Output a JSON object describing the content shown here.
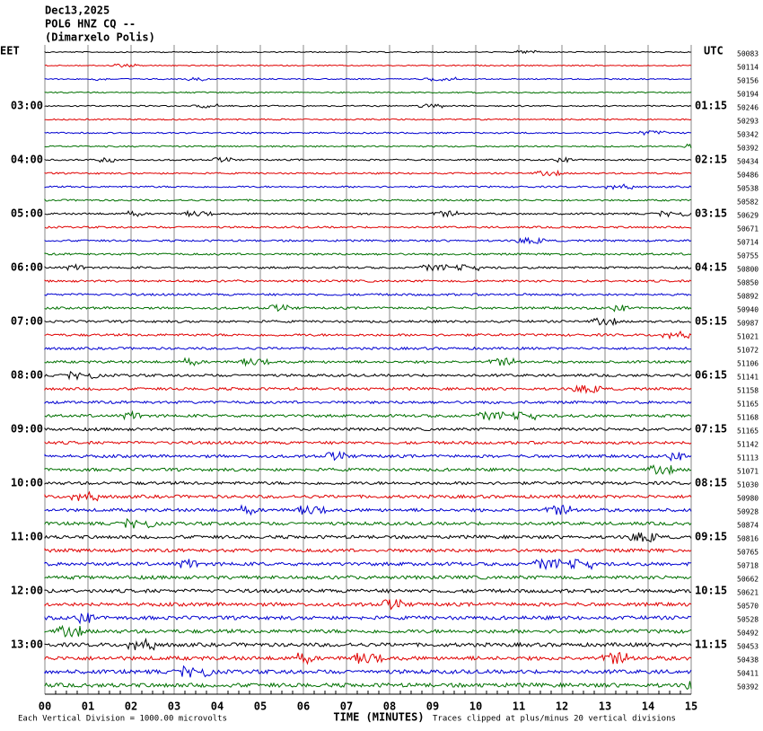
{
  "header": {
    "lines": [
      "Dec13,2025",
      "POL6 HNZ CQ --",
      "(Dimarxelo Polis)"
    ]
  },
  "left_axis": {
    "title": "EET",
    "labels": [
      "03:00",
      "04:00",
      "05:00",
      "06:00",
      "07:00",
      "08:00",
      "09:00",
      "10:00",
      "11:00",
      "12:00",
      "13:00"
    ]
  },
  "right_axis": {
    "title": "UTC",
    "labels": [
      "01:15",
      "02:15",
      "03:15",
      "04:15",
      "05:15",
      "06:15",
      "07:15",
      "08:15",
      "09:15",
      "10:15",
      "11:15"
    ]
  },
  "x_axis": {
    "title": "TIME (MINUTES)",
    "ticks": [
      "00",
      "01",
      "02",
      "03",
      "04",
      "05",
      "06",
      "07",
      "08",
      "09",
      "10",
      "11",
      "12",
      "13",
      "14",
      "15"
    ]
  },
  "trace_colors": [
    "#000000",
    "#e00000",
    "#0000d0",
    "#007000"
  ],
  "trace_offsets": [
    50083,
    50114,
    50156,
    50194,
    50246,
    50293,
    50342,
    50392,
    50434,
    50486,
    50538,
    50582,
    50629,
    50671,
    50714,
    50755,
    50800,
    50850,
    50892,
    50940,
    50987,
    51021,
    51072,
    51106,
    51141,
    51158,
    51165,
    51168,
    51165,
    51142,
    51113,
    51071,
    51030,
    50980,
    50928,
    50874,
    50816,
    50765,
    50718,
    50662,
    50621,
    50570,
    50528,
    50492,
    50453,
    50438,
    50411,
    50392
  ],
  "footer": {
    "scale": "Each Vertical Division = 1000.00 microvolts",
    "clip": "Traces clipped at plus/minus 20 vertical divisions"
  }
}
